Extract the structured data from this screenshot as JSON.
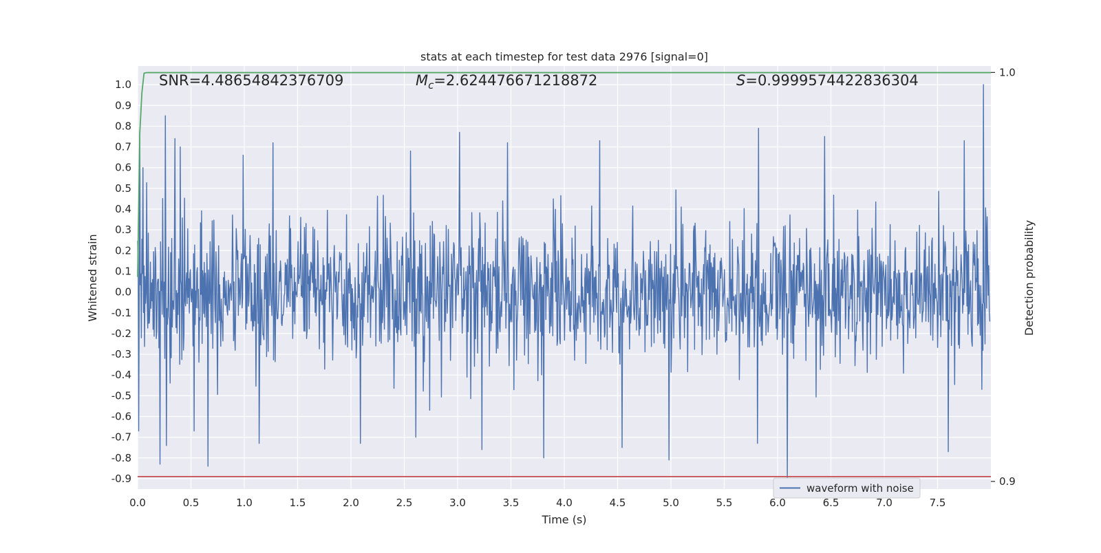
{
  "chart_data": {
    "type": "line",
    "title": "stats at each timestep for test data 2976 [signal=0]",
    "xlabel": "Time (s)",
    "ylabel": "Whitened strain",
    "y2label": "Detection probability",
    "xlim": [
      0.0,
      8.0
    ],
    "ylim": [
      -0.95,
      1.09
    ],
    "y2lim": [
      0.89814,
      1.00157
    ],
    "x_ticks": [
      "0.0",
      "0.5",
      "1.0",
      "1.5",
      "2.0",
      "2.5",
      "3.0",
      "3.5",
      "4.0",
      "4.5",
      "5.0",
      "5.5",
      "6.0",
      "6.5",
      "7.0",
      "7.5"
    ],
    "y_ticks": [
      "1.0",
      "0.9",
      "0.8",
      "0.7",
      "0.6",
      "0.5",
      "0.4",
      "0.3",
      "0.2",
      "0.1",
      "0.0",
      "-0.1",
      "-0.2",
      "-0.3",
      "-0.4",
      "-0.5",
      "-0.6",
      "-0.7",
      "-0.8",
      "-0.9"
    ],
    "y2_ticks": [
      "1.0",
      "0.9"
    ],
    "grid": true,
    "legend_position": "lower-right",
    "annotations": {
      "snr": "SNR=4.48654842376709",
      "mc_symbol": "M",
      "mc_sub": "c",
      "mc_value": "=2.624476671218872",
      "s_symbol": "S",
      "s_value": "=0.9999574422836304"
    },
    "series": [
      {
        "name": "waveform with noise",
        "axis": "left",
        "color": "#4c72b0",
        "kind": "noise",
        "n_samples": 1600,
        "noise_sigma": 0.17,
        "peaks": [
          {
            "x": 0.01,
            "y": -0.67
          },
          {
            "x": 0.02,
            "y": 0.78
          },
          {
            "x": 0.05,
            "y": 0.6
          },
          {
            "x": 0.21,
            "y": -0.83
          },
          {
            "x": 0.26,
            "y": 0.85
          },
          {
            "x": 0.27,
            "y": -0.74
          },
          {
            "x": 0.35,
            "y": 0.74
          },
          {
            "x": 0.4,
            "y": 0.7
          },
          {
            "x": 0.53,
            "y": -0.67
          },
          {
            "x": 0.66,
            "y": -0.84
          },
          {
            "x": 0.99,
            "y": 0.66
          },
          {
            "x": 1.14,
            "y": -0.73
          },
          {
            "x": 1.27,
            "y": 0.72
          },
          {
            "x": 2.09,
            "y": -0.73
          },
          {
            "x": 2.56,
            "y": 0.68
          },
          {
            "x": 2.61,
            "y": -0.7
          },
          {
            "x": 3.02,
            "y": 0.77
          },
          {
            "x": 3.23,
            "y": -0.76
          },
          {
            "x": 3.47,
            "y": 0.72
          },
          {
            "x": 3.81,
            "y": -0.8
          },
          {
            "x": 4.33,
            "y": 0.73
          },
          {
            "x": 4.54,
            "y": -0.75
          },
          {
            "x": 4.98,
            "y": -0.81
          },
          {
            "x": 5.82,
            "y": 0.79
          },
          {
            "x": 5.81,
            "y": -0.73
          },
          {
            "x": 6.09,
            "y": -0.9
          },
          {
            "x": 6.44,
            "y": 0.75
          },
          {
            "x": 7.75,
            "y": 0.73
          },
          {
            "x": 7.93,
            "y": 1.0
          },
          {
            "x": 7.6,
            "y": -0.77
          }
        ]
      },
      {
        "name": "",
        "axis": "right",
        "color": "#55a868",
        "x": [
          0.0,
          0.02,
          0.04,
          0.06,
          0.08,
          0.1,
          8.0
        ],
        "y": [
          0.95,
          0.985,
          0.995,
          0.9998,
          0.99995,
          0.99996,
          0.99996
        ]
      },
      {
        "name": "",
        "axis": "left",
        "color": "#c44e52",
        "x": [
          0.0,
          8.0
        ],
        "y": [
          -0.89,
          -0.89
        ]
      }
    ]
  }
}
